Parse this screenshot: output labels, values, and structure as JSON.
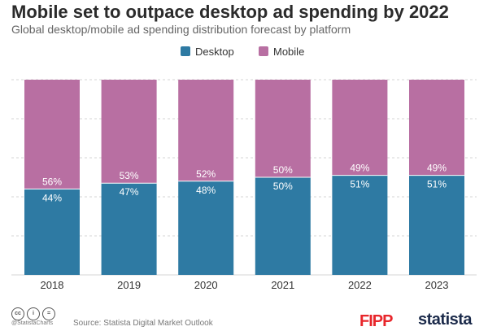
{
  "header": {
    "title": "Mobile set to outpace desktop ad spending by 2022",
    "subtitle": "Global desktop/mobile ad spending distribution forecast by platform"
  },
  "colors": {
    "desktop": "#2e7aa3",
    "mobile": "#b86fa2",
    "grid": "#d6d6d6"
  },
  "chart_data": {
    "type": "bar",
    "stacked": true,
    "categories": [
      "2018",
      "2019",
      "2020",
      "2021",
      "2022",
      "2023"
    ],
    "series": [
      {
        "name": "Desktop",
        "values": [
          44,
          47,
          48,
          50,
          51,
          51
        ],
        "labels": [
          "44%",
          "47%",
          "48%",
          "50%",
          "51%",
          "51%"
        ]
      },
      {
        "name": "Mobile",
        "values": [
          56,
          53,
          52,
          50,
          49,
          49
        ],
        "labels": [
          "56%",
          "53%",
          "52%",
          "50%",
          "49%",
          "49%"
        ]
      }
    ],
    "ylim": [
      0,
      100
    ],
    "grid": true,
    "legend": "top-center"
  },
  "footer": {
    "handle": "@StatistaCharts",
    "source": "Source: Statista Digital Market Outlook",
    "brand_left": "FIPP",
    "brand_right": "statista"
  }
}
